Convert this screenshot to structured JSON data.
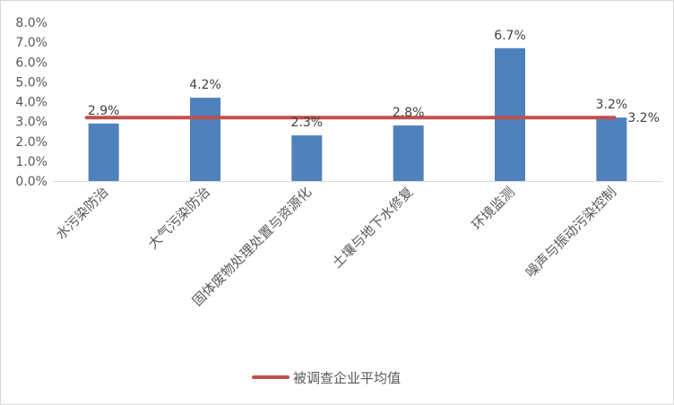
{
  "chart_data": {
    "type": "bar",
    "categories": [
      "水污染防治",
      "大气污染防治",
      "固体废物处理处置与资源化",
      "土壤与地下水修复",
      "环境监测",
      "噪声与振动污染控制"
    ],
    "series": [
      {
        "values": [
          2.9,
          4.2,
          2.3,
          2.8,
          6.7,
          3.2
        ],
        "value_labels": [
          "2.9%",
          "4.2%",
          "2.3%",
          "2.8%",
          "6.7%",
          "3.2%"
        ],
        "color": "#4f81bd"
      },
      {
        "name": "被调查企业平均值",
        "type": "line",
        "value": 3.2,
        "value_label": "3.2%",
        "color": "#c0504d"
      }
    ],
    "yticks": [
      "0.0%",
      "1.0%",
      "2.0%",
      "3.0%",
      "4.0%",
      "5.0%",
      "6.0%",
      "7.0%",
      "8.0%"
    ],
    "ylim": [
      0,
      8
    ],
    "grid": false,
    "legend": "bottom"
  }
}
